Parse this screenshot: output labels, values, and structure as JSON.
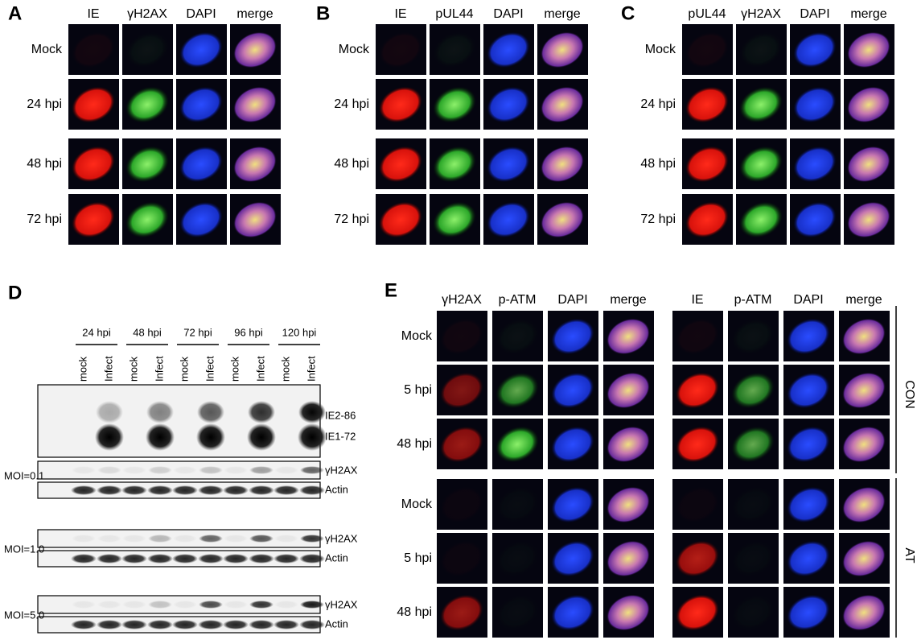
{
  "panels": [
    {
      "letter": "A",
      "columns": [
        "IE",
        "γH2AX",
        "DAPI",
        "merge"
      ],
      "rows": [
        "Mock",
        "24 hpi",
        "48 hpi",
        "72 hpi"
      ]
    },
    {
      "letter": "B",
      "columns": [
        "IE",
        "pUL44",
        "DAPI",
        "merge"
      ],
      "rows": [
        "Mock",
        "24 hpi",
        "48 hpi",
        "72 hpi"
      ]
    },
    {
      "letter": "C",
      "columns": [
        "pUL44",
        "γH2AX",
        "DAPI",
        "merge"
      ],
      "rows": [
        "Mock",
        "24 hpi",
        "48 hpi",
        "72 hpi"
      ]
    }
  ],
  "blot": {
    "letter": "D",
    "timepoints": [
      "24 hpi",
      "48 hpi",
      "72 hpi",
      "96 hpi",
      "120 hpi"
    ],
    "lanes": [
      "mock",
      "Infect",
      "mock",
      "Infect",
      "mock",
      "Infect",
      "mock",
      "Infect",
      "mock",
      "Infect"
    ],
    "ie_bands": [
      "IE2-86",
      "IE1-72"
    ],
    "groups": [
      {
        "moi": "MOI=0.1",
        "labels": [
          "γH2AX",
          "Actin"
        ]
      },
      {
        "moi": "MOI=1.0",
        "labels": [
          "γH2AX",
          "Actin"
        ]
      },
      {
        "moi": "MOI=5.0",
        "labels": [
          "γH2AX",
          "Actin"
        ]
      }
    ]
  },
  "panel_e": {
    "letter": "E",
    "left_columns": [
      "γH2AX",
      "p-ATM",
      "DAPI",
      "merge"
    ],
    "right_columns": [
      "IE",
      "p-ATM",
      "DAPI",
      "merge"
    ],
    "rows": [
      "Mock",
      "5 hpi",
      "48 hpi",
      "Mock",
      "5 hpi",
      "48 hpi"
    ],
    "groups": [
      "CON",
      "AT"
    ]
  }
}
